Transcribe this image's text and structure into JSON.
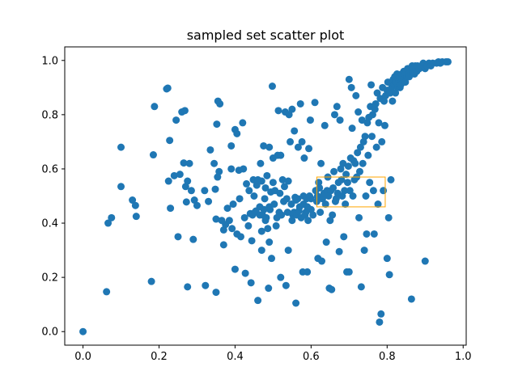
{
  "chart_data": {
    "type": "scatter",
    "title": "sampled set scatter plot",
    "xlabel": "",
    "ylabel": "",
    "xlim": [
      -0.048,
      1.008
    ],
    "ylim": [
      -0.05,
      1.05
    ],
    "xticks": [
      "0.0",
      "0.2",
      "0.4",
      "0.6",
      "0.8",
      "1.0"
    ],
    "yticks": [
      "0.0",
      "0.2",
      "0.4",
      "0.6",
      "0.8",
      "1.0"
    ],
    "grid": false,
    "legend": "none",
    "colors": {
      "points": "#1f77b4",
      "highlight_box": "#ffa500",
      "axes": "#000000"
    },
    "highlight_box": {
      "x0": 0.615,
      "x1": 0.795,
      "y0": 0.46,
      "y1": 0.57
    },
    "series": [
      {
        "points": [
          [
            0.0,
            0.0
          ],
          [
            0.062,
            0.147
          ],
          [
            0.066,
            0.4
          ],
          [
            0.075,
            0.42
          ],
          [
            0.1,
            0.68
          ],
          [
            0.1,
            0.535
          ],
          [
            0.13,
            0.485
          ],
          [
            0.138,
            0.465
          ],
          [
            0.14,
            0.425
          ],
          [
            0.18,
            0.185
          ],
          [
            0.185,
            0.652
          ],
          [
            0.188,
            0.83
          ],
          [
            0.22,
            0.895
          ],
          [
            0.223,
            0.898
          ],
          [
            0.225,
            0.555
          ],
          [
            0.228,
            0.705
          ],
          [
            0.23,
            0.455
          ],
          [
            0.24,
            0.575
          ],
          [
            0.245,
            0.78
          ],
          [
            0.25,
            0.35
          ],
          [
            0.255,
            0.58
          ],
          [
            0.26,
            0.81
          ],
          [
            0.265,
            0.622
          ],
          [
            0.268,
            0.815
          ],
          [
            0.27,
            0.535
          ],
          [
            0.272,
            0.478
          ],
          [
            0.275,
            0.165
          ],
          [
            0.275,
            0.555
          ],
          [
            0.28,
            0.62
          ],
          [
            0.285,
            0.52
          ],
          [
            0.29,
            0.34
          ],
          [
            0.293,
            0.485
          ],
          [
            0.3,
            0.465
          ],
          [
            0.32,
            0.52
          ],
          [
            0.322,
            0.17
          ],
          [
            0.33,
            0.48
          ],
          [
            0.335,
            0.67
          ],
          [
            0.345,
            0.62
          ],
          [
            0.348,
            0.525
          ],
          [
            0.35,
            0.145
          ],
          [
            0.35,
            0.415
          ],
          [
            0.352,
            0.765
          ],
          [
            0.354,
            0.57
          ],
          [
            0.355,
            0.85
          ],
          [
            0.358,
            0.59
          ],
          [
            0.36,
            0.84
          ],
          [
            0.365,
            0.41
          ],
          [
            0.37,
            0.375
          ],
          [
            0.37,
            0.32
          ],
          [
            0.375,
            0.395
          ],
          [
            0.38,
            0.455
          ],
          [
            0.385,
            0.41
          ],
          [
            0.39,
            0.685
          ],
          [
            0.39,
            0.6
          ],
          [
            0.392,
            0.38
          ],
          [
            0.395,
            0.47
          ],
          [
            0.4,
            0.745
          ],
          [
            0.4,
            0.23
          ],
          [
            0.405,
            0.73
          ],
          [
            0.405,
            0.36
          ],
          [
            0.41,
            0.595
          ],
          [
            0.412,
            0.49
          ],
          [
            0.415,
            0.35
          ],
          [
            0.42,
            0.77
          ],
          [
            0.422,
            0.6
          ],
          [
            0.425,
            0.42
          ],
          [
            0.427,
            0.215
          ],
          [
            0.43,
            0.545
          ],
          [
            0.435,
            0.39
          ],
          [
            0.437,
            0.52
          ],
          [
            0.44,
            0.435
          ],
          [
            0.442,
            0.18
          ],
          [
            0.444,
            0.335
          ],
          [
            0.446,
            0.43
          ],
          [
            0.448,
            0.56
          ],
          [
            0.45,
            0.5
          ],
          [
            0.452,
            0.44
          ],
          [
            0.455,
            0.445
          ],
          [
            0.457,
            0.54
          ],
          [
            0.46,
            0.115
          ],
          [
            0.46,
            0.56
          ],
          [
            0.465,
            0.43
          ],
          [
            0.465,
            0.46
          ],
          [
            0.467,
            0.62
          ],
          [
            0.47,
            0.3
          ],
          [
            0.47,
            0.555
          ],
          [
            0.47,
            0.37
          ],
          [
            0.472,
            0.43
          ],
          [
            0.475,
            0.685
          ],
          [
            0.476,
            0.45
          ],
          [
            0.478,
            0.49
          ],
          [
            0.48,
            0.41
          ],
          [
            0.48,
            0.53
          ],
          [
            0.482,
            0.42
          ],
          [
            0.484,
            0.575
          ],
          [
            0.486,
            0.38
          ],
          [
            0.488,
            0.16
          ],
          [
            0.49,
            0.46
          ],
          [
            0.49,
            0.68
          ],
          [
            0.49,
            0.33
          ],
          [
            0.492,
            0.45
          ],
          [
            0.494,
            0.515
          ],
          [
            0.496,
            0.27
          ],
          [
            0.498,
            0.905
          ],
          [
            0.5,
            0.55
          ],
          [
            0.5,
            0.64
          ],
          [
            0.503,
            0.47
          ],
          [
            0.505,
            0.52
          ],
          [
            0.508,
            0.39
          ],
          [
            0.51,
            0.42
          ],
          [
            0.512,
            0.65
          ],
          [
            0.514,
            0.815
          ],
          [
            0.516,
            0.44
          ],
          [
            0.518,
            0.51
          ],
          [
            0.52,
            0.2
          ],
          [
            0.52,
            0.65
          ],
          [
            0.522,
            0.43
          ],
          [
            0.525,
            0.56
          ],
          [
            0.528,
            0.48
          ],
          [
            0.53,
            0.535
          ],
          [
            0.532,
            0.81
          ],
          [
            0.534,
            0.17
          ],
          [
            0.536,
            0.49
          ],
          [
            0.538,
            0.44
          ],
          [
            0.54,
            0.555
          ],
          [
            0.54,
            0.3
          ],
          [
            0.542,
            0.8
          ],
          [
            0.545,
            0.7
          ],
          [
            0.548,
            0.47
          ],
          [
            0.55,
            0.82
          ],
          [
            0.55,
            0.41
          ],
          [
            0.552,
            0.43
          ],
          [
            0.555,
            0.44
          ],
          [
            0.556,
            0.74
          ],
          [
            0.558,
            0.495
          ],
          [
            0.56,
            0.485
          ],
          [
            0.56,
            0.105
          ],
          [
            0.562,
            0.43
          ],
          [
            0.565,
            0.49
          ],
          [
            0.566,
            0.68
          ],
          [
            0.568,
            0.445
          ],
          [
            0.57,
            0.46
          ],
          [
            0.572,
            0.84
          ],
          [
            0.574,
            0.42
          ],
          [
            0.576,
            0.7
          ],
          [
            0.578,
            0.22
          ],
          [
            0.58,
            0.47
          ],
          [
            0.58,
            0.5
          ],
          [
            0.582,
            0.64
          ],
          [
            0.584,
            0.43
          ],
          [
            0.586,
            0.44
          ],
          [
            0.588,
            0.49
          ],
          [
            0.59,
            0.22
          ],
          [
            0.59,
            0.46
          ],
          [
            0.592,
            0.41
          ],
          [
            0.594,
            0.675
          ],
          [
            0.596,
            0.5
          ],
          [
            0.598,
            0.78
          ],
          [
            0.6,
            0.45
          ],
          [
            0.6,
            0.49
          ],
          [
            0.605,
            0.43
          ],
          [
            0.61,
            0.845
          ],
          [
            0.612,
            0.52
          ],
          [
            0.615,
            0.48
          ],
          [
            0.617,
            0.5
          ],
          [
            0.618,
            0.27
          ],
          [
            0.62,
            0.55
          ],
          [
            0.622,
            0.53
          ],
          [
            0.624,
            0.44
          ],
          [
            0.626,
            0.62
          ],
          [
            0.628,
            0.26
          ],
          [
            0.63,
            0.49
          ],
          [
            0.632,
            0.5
          ],
          [
            0.634,
            0.51
          ],
          [
            0.636,
            0.76
          ],
          [
            0.638,
            0.47
          ],
          [
            0.64,
            0.33
          ],
          [
            0.642,
            0.52
          ],
          [
            0.644,
            0.57
          ],
          [
            0.646,
            0.5
          ],
          [
            0.648,
            0.16
          ],
          [
            0.65,
            0.41
          ],
          [
            0.652,
            0.52
          ],
          [
            0.654,
            0.155
          ],
          [
            0.656,
            0.43
          ],
          [
            0.658,
            0.53
          ],
          [
            0.66,
            0.59
          ],
          [
            0.662,
            0.8
          ],
          [
            0.664,
            0.48
          ],
          [
            0.666,
            0.49
          ],
          [
            0.668,
            0.83
          ],
          [
            0.67,
            0.51
          ],
          [
            0.672,
            0.55
          ],
          [
            0.674,
            0.295
          ],
          [
            0.676,
            0.78
          ],
          [
            0.678,
            0.6
          ],
          [
            0.68,
            0.56
          ],
          [
            0.682,
            0.5
          ],
          [
            0.684,
            0.62
          ],
          [
            0.686,
            0.35
          ],
          [
            0.688,
            0.52
          ],
          [
            0.69,
            0.47
          ],
          [
            0.692,
            0.58
          ],
          [
            0.694,
            0.22
          ],
          [
            0.696,
            0.55
          ],
          [
            0.698,
            0.61
          ],
          [
            0.7,
            0.93
          ],
          [
            0.7,
            0.22
          ],
          [
            0.702,
            0.52
          ],
          [
            0.704,
            0.64
          ],
          [
            0.706,
            0.9
          ],
          [
            0.708,
            0.75
          ],
          [
            0.71,
            0.5
          ],
          [
            0.712,
            0.63
          ],
          [
            0.714,
            0.56
          ],
          [
            0.716,
            0.62
          ],
          [
            0.718,
            0.87
          ],
          [
            0.72,
            0.57
          ],
          [
            0.722,
            0.66
          ],
          [
            0.724,
            0.81
          ],
          [
            0.726,
            0.42
          ],
          [
            0.728,
            0.59
          ],
          [
            0.73,
            0.68
          ],
          [
            0.732,
            0.165
          ],
          [
            0.734,
            0.78
          ],
          [
            0.736,
            0.62
          ],
          [
            0.738,
            0.7
          ],
          [
            0.74,
            0.3
          ],
          [
            0.742,
            0.72
          ],
          [
            0.744,
            0.5
          ],
          [
            0.746,
            0.36
          ],
          [
            0.748,
            0.77
          ],
          [
            0.75,
            0.65
          ],
          [
            0.752,
            0.79
          ],
          [
            0.754,
            0.55
          ],
          [
            0.756,
            0.83
          ],
          [
            0.758,
            0.91
          ],
          [
            0.76,
            0.72
          ],
          [
            0.762,
            0.8
          ],
          [
            0.764,
            0.52
          ],
          [
            0.766,
            0.36
          ],
          [
            0.768,
            0.82
          ],
          [
            0.77,
            0.84
          ],
          [
            0.772,
            0.68
          ],
          [
            0.774,
            0.88
          ],
          [
            0.776,
            0.47
          ],
          [
            0.778,
            0.77
          ],
          [
            0.78,
            0.035
          ],
          [
            0.782,
            0.86
          ],
          [
            0.784,
            0.065
          ],
          [
            0.786,
            0.7
          ],
          [
            0.788,
            0.9
          ],
          [
            0.79,
            0.52
          ],
          [
            0.792,
            0.85
          ],
          [
            0.794,
            0.76
          ],
          [
            0.796,
            0.87
          ],
          [
            0.8,
            0.89
          ],
          [
            0.8,
            0.27
          ],
          [
            0.802,
            0.92
          ],
          [
            0.804,
            0.42
          ],
          [
            0.806,
            0.21
          ],
          [
            0.808,
            0.88
          ],
          [
            0.81,
            0.56
          ],
          [
            0.812,
            0.9
          ],
          [
            0.814,
            0.85
          ],
          [
            0.816,
            0.93
          ],
          [
            0.818,
            0.91
          ],
          [
            0.82,
            0.94
          ],
          [
            0.822,
            0.88
          ],
          [
            0.824,
            0.92
          ],
          [
            0.826,
            0.95
          ],
          [
            0.828,
            0.9
          ],
          [
            0.83,
            0.93
          ],
          [
            0.832,
            0.94
          ],
          [
            0.834,
            0.9
          ],
          [
            0.836,
            0.91
          ],
          [
            0.838,
            0.95
          ],
          [
            0.84,
            0.93
          ],
          [
            0.842,
            0.94
          ],
          [
            0.844,
            0.96
          ],
          [
            0.846,
            0.95
          ],
          [
            0.848,
            0.92
          ],
          [
            0.85,
            0.96
          ],
          [
            0.852,
            0.94
          ],
          [
            0.854,
            0.97
          ],
          [
            0.856,
            0.95
          ],
          [
            0.858,
            0.94
          ],
          [
            0.86,
            0.97
          ],
          [
            0.862,
            0.96
          ],
          [
            0.864,
            0.12
          ],
          [
            0.866,
            0.98
          ],
          [
            0.868,
            0.96
          ],
          [
            0.87,
            0.97
          ],
          [
            0.872,
            0.95
          ],
          [
            0.874,
            0.98
          ],
          [
            0.876,
            0.97
          ],
          [
            0.878,
            0.96
          ],
          [
            0.88,
            0.98
          ],
          [
            0.885,
            0.97
          ],
          [
            0.89,
            0.98
          ],
          [
            0.895,
            0.99
          ],
          [
            0.9,
            0.26
          ],
          [
            0.9,
            0.97
          ],
          [
            0.905,
            0.98
          ],
          [
            0.91,
            0.99
          ],
          [
            0.915,
            0.98
          ],
          [
            0.92,
            0.99
          ],
          [
            0.93,
            0.99
          ],
          [
            0.935,
            0.995
          ],
          [
            0.94,
            0.99
          ],
          [
            0.945,
            0.995
          ],
          [
            0.955,
            0.995
          ],
          [
            0.96,
            0.995
          ]
        ]
      }
    ]
  }
}
